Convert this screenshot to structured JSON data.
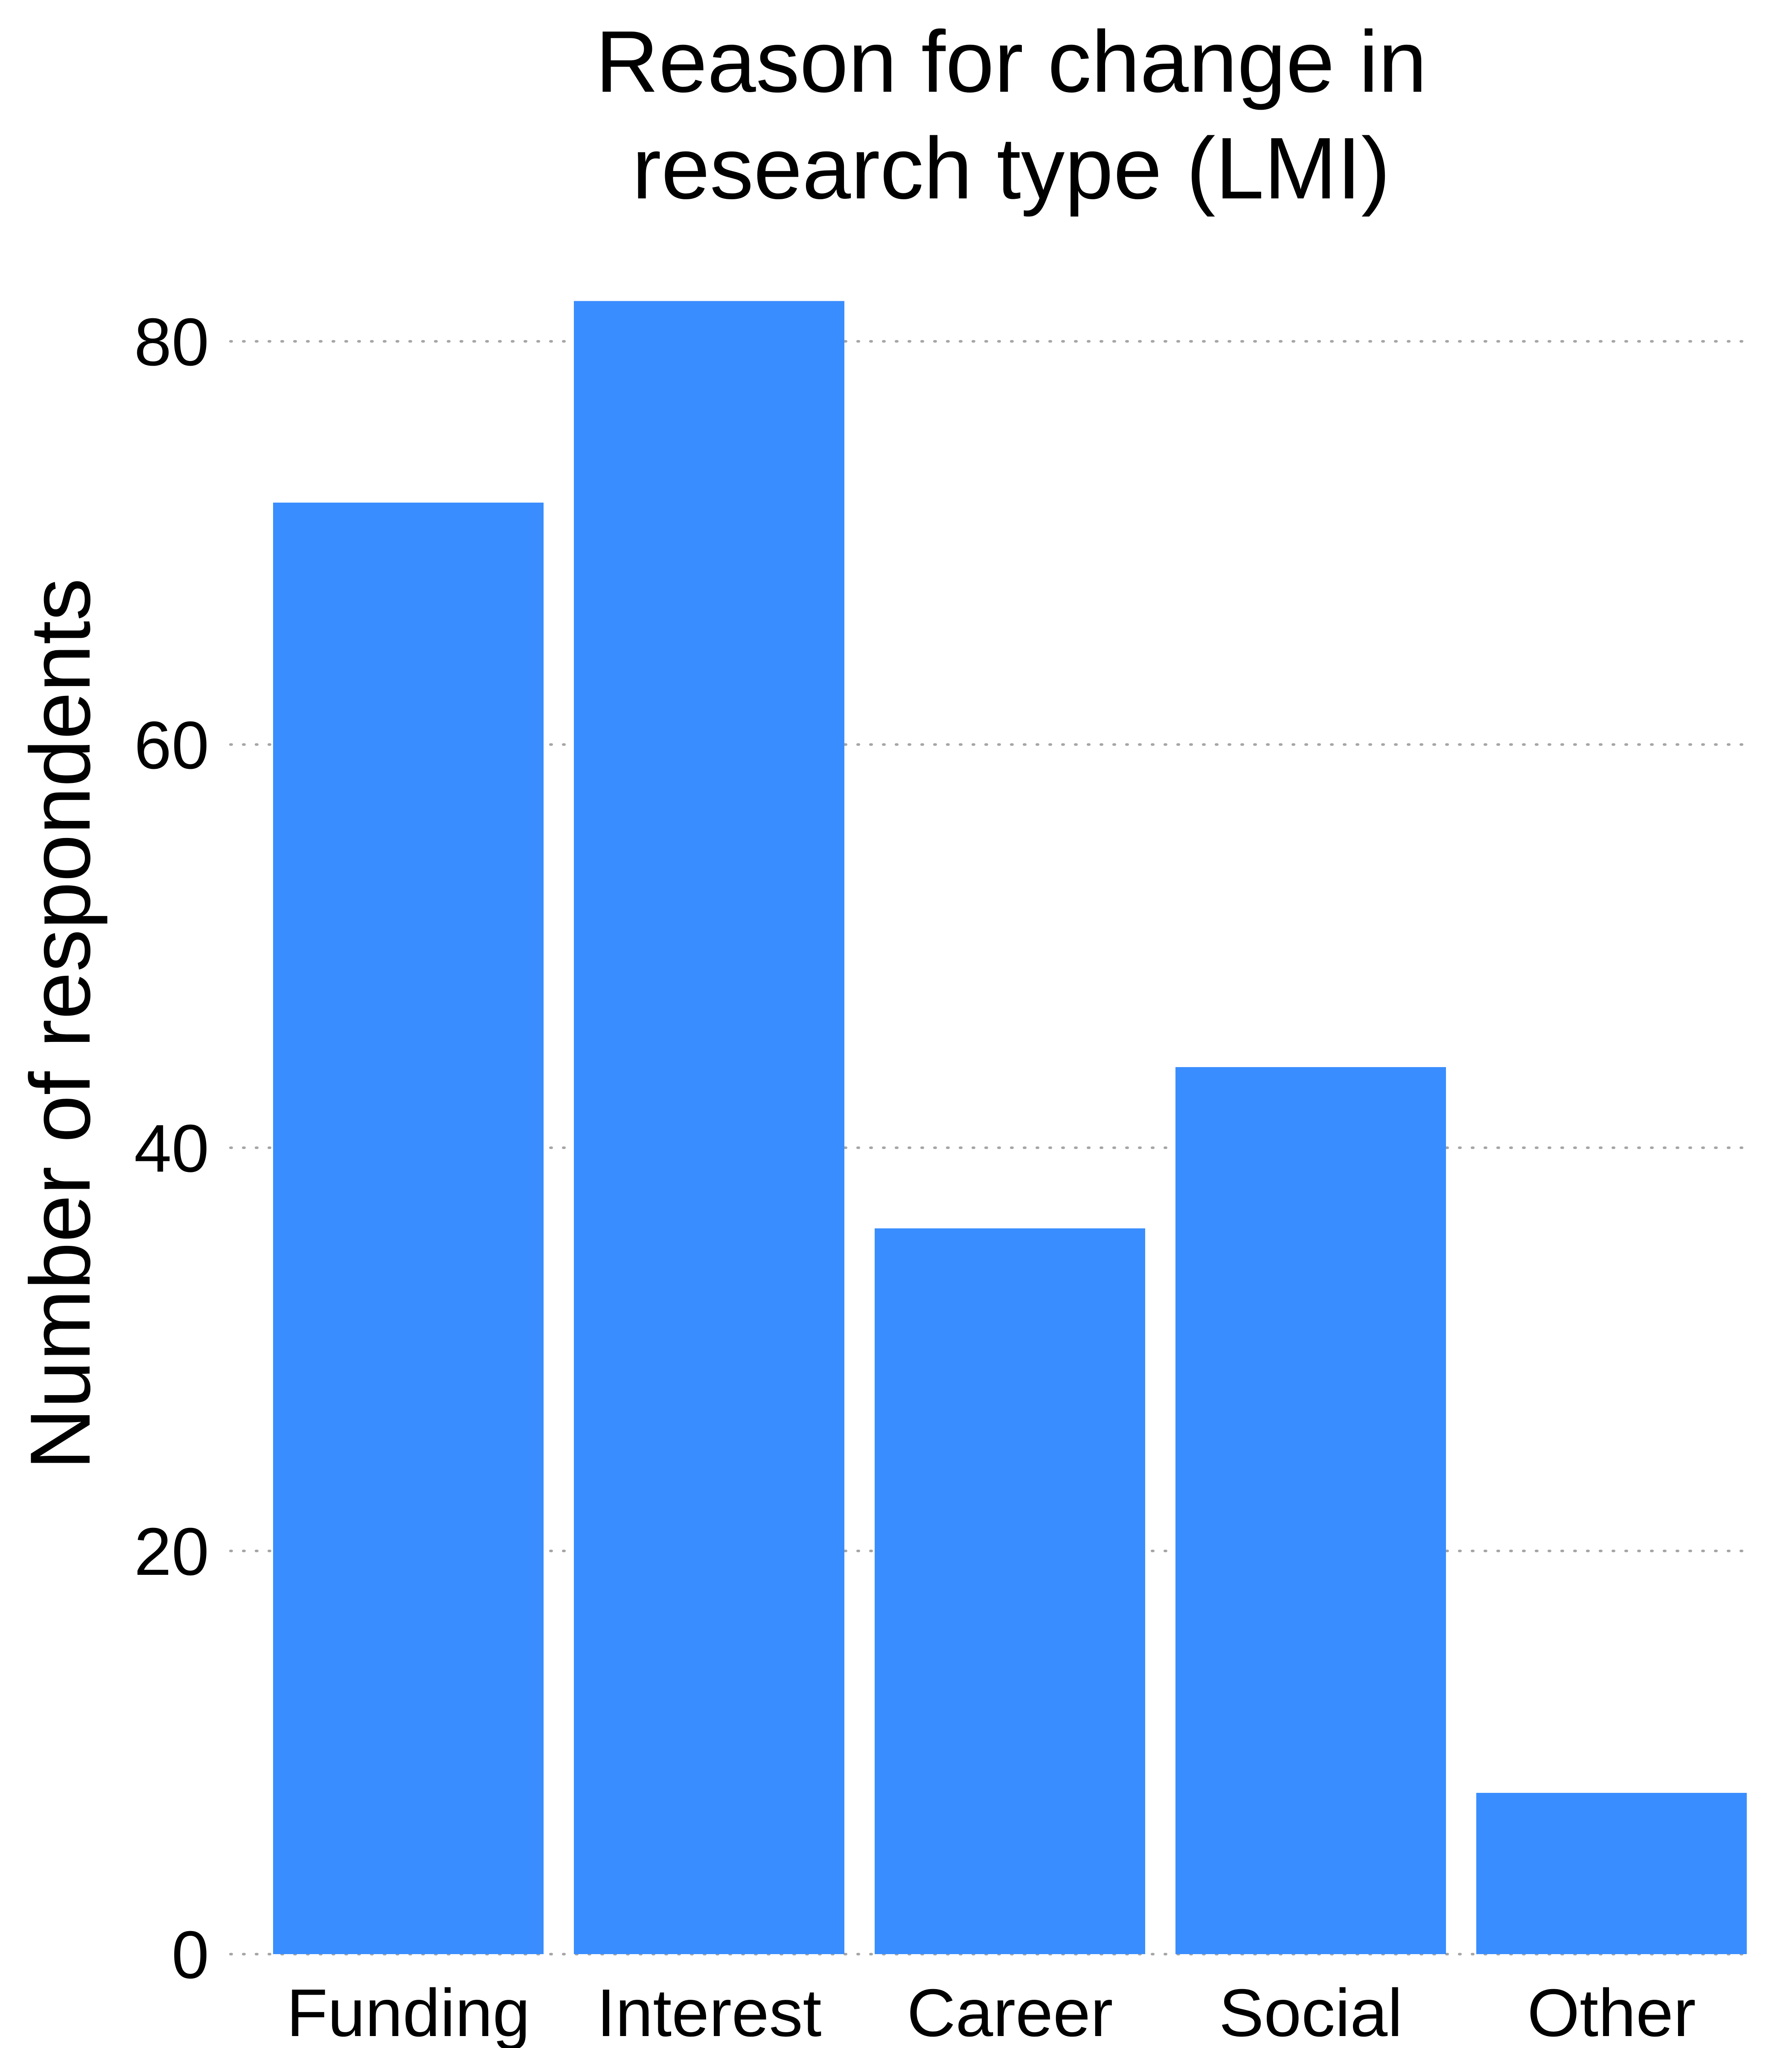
{
  "chart_data": {
    "type": "bar",
    "title_lines": [
      "Reason for change in",
      "research type (LMI)"
    ],
    "xlabel": "",
    "ylabel": "Number of respondents",
    "categories": [
      "Funding",
      "Interest",
      "Career",
      "Social",
      "Other"
    ],
    "values": [
      72,
      82,
      36,
      44,
      8
    ],
    "ylim": [
      0,
      83
    ],
    "yticks": [
      0,
      20,
      40,
      60,
      80
    ],
    "grid": "horizontal dotted",
    "legend": "none",
    "bar_color": "#3a8dfe"
  }
}
